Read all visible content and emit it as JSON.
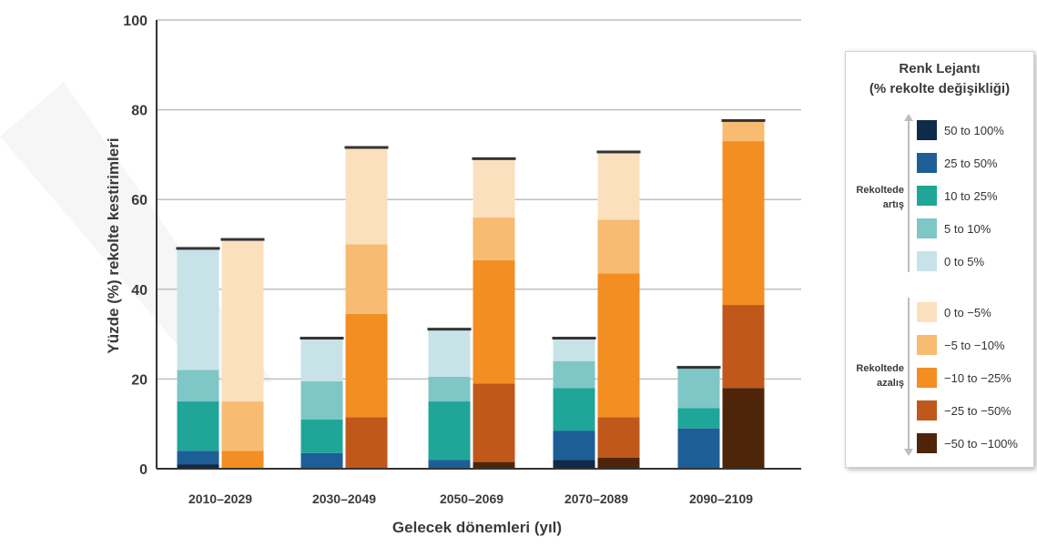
{
  "chart_data": {
    "type": "bar",
    "stacked": true,
    "xlabel": "Gelecek dönemleri (yıl)",
    "ylabel": "Yüzde (%) rekolte kestirimleri",
    "ylim": [
      0,
      100
    ],
    "yticks": [
      "0",
      "20",
      "40",
      "60",
      "80",
      "100"
    ],
    "grid": true,
    "legend_position": "right",
    "categories": [
      "2010–2029",
      "2030–2049",
      "2050–2069",
      "2070–2089",
      "2090–2109"
    ],
    "color_map": {
      "50 to 100%": "#0f2a4a",
      "25 to 50%": "#1e5e97",
      "10 to 25%": "#1fa699",
      "5 to 10%": "#7ec7c6",
      "0 to 5%": "#c7e3e8",
      "0 to −5%": "#fbe0bd",
      "−5 to −10%": "#f8bb72",
      "−10 to −25%": "#f28e22",
      "−25 to −50%": "#c0571b",
      "−50 to −100%": "#4e2509"
    },
    "bars": [
      {
        "category_index": 0,
        "type": "increase",
        "segments": [
          {
            "range": "50 to 100%",
            "value": 1
          },
          {
            "range": "25 to 50%",
            "value": 3
          },
          {
            "range": "10 to 25%",
            "value": 11
          },
          {
            "range": "5 to 10%",
            "value": 7
          },
          {
            "range": "0 to 5%",
            "value": 27
          }
        ]
      },
      {
        "category_index": 0,
        "type": "decrease",
        "segments": [
          {
            "range": "−10 to −25%",
            "value": 4
          },
          {
            "range": "−5 to −10%",
            "value": 11
          },
          {
            "range": "0 to −5%",
            "value": 36
          }
        ]
      },
      {
        "category_index": 1,
        "type": "increase",
        "segments": [
          {
            "range": "25 to 50%",
            "value": 3.5
          },
          {
            "range": "10 to 25%",
            "value": 7.5
          },
          {
            "range": "5 to 10%",
            "value": 8.5
          },
          {
            "range": "0 to 5%",
            "value": 9.5
          }
        ]
      },
      {
        "category_index": 1,
        "type": "decrease",
        "segments": [
          {
            "range": "−25 to −50%",
            "value": 11.5
          },
          {
            "range": "−10 to −25%",
            "value": 23
          },
          {
            "range": "−5 to −10%",
            "value": 15.5
          },
          {
            "range": "0 to −5%",
            "value": 21.5
          }
        ]
      },
      {
        "category_index": 2,
        "type": "increase",
        "segments": [
          {
            "range": "25 to 50%",
            "value": 2
          },
          {
            "range": "10 to 25%",
            "value": 13
          },
          {
            "range": "5 to 10%",
            "value": 5.5
          },
          {
            "range": "0 to 5%",
            "value": 10.5
          }
        ]
      },
      {
        "category_index": 2,
        "type": "decrease",
        "segments": [
          {
            "range": "−50 to −100%",
            "value": 1.5
          },
          {
            "range": "−25 to −50%",
            "value": 17.5
          },
          {
            "range": "−10 to −25%",
            "value": 27.5
          },
          {
            "range": "−5 to −10%",
            "value": 9.5
          },
          {
            "range": "0 to −5%",
            "value": 13
          }
        ]
      },
      {
        "category_index": 3,
        "type": "increase",
        "segments": [
          {
            "range": "50 to 100%",
            "value": 2
          },
          {
            "range": "25 to 50%",
            "value": 6.5
          },
          {
            "range": "10 to 25%",
            "value": 9.5
          },
          {
            "range": "5 to 10%",
            "value": 6
          },
          {
            "range": "0 to 5%",
            "value": 5
          }
        ]
      },
      {
        "category_index": 3,
        "type": "decrease",
        "segments": [
          {
            "range": "−50 to −100%",
            "value": 2.5
          },
          {
            "range": "−25 to −50%",
            "value": 9
          },
          {
            "range": "−10 to −25%",
            "value": 32
          },
          {
            "range": "−5 to −10%",
            "value": 12
          },
          {
            "range": "0 to −5%",
            "value": 15
          }
        ]
      },
      {
        "category_index": 4,
        "type": "increase",
        "segments": [
          {
            "range": "25 to 50%",
            "value": 9
          },
          {
            "range": "10 to 25%",
            "value": 4.5
          },
          {
            "range": "5 to 10%",
            "value": 9
          }
        ]
      },
      {
        "category_index": 4,
        "type": "decrease",
        "segments": [
          {
            "range": "−50 to −100%",
            "value": 18
          },
          {
            "range": "−25 to −50%",
            "value": 18.5
          },
          {
            "range": "−10 to −25%",
            "value": 36.5
          },
          {
            "range": "−5 to −10%",
            "value": 4.5
          }
        ]
      }
    ]
  },
  "legend": {
    "title_line1": "Renk Lejantı",
    "title_line2": "(% rekolte değişikliği)",
    "increase_label_line1": "Rekoltede",
    "increase_label_line2": "artış",
    "decrease_label_line1": "Rekoltede",
    "decrease_label_line2": "azalış",
    "increase_items": [
      {
        "label": "50 to 100%",
        "color": "#0f2a4a"
      },
      {
        "label": "25 to 50%",
        "color": "#1e5e97"
      },
      {
        "label": "10 to 25%",
        "color": "#1fa699"
      },
      {
        "label": "5 to 10%",
        "color": "#7ec7c6"
      },
      {
        "label": "0 to 5%",
        "color": "#c7e3e8"
      }
    ],
    "decrease_items": [
      {
        "label": "0 to −5%",
        "color": "#fbe0bd"
      },
      {
        "label": "−5 to −10%",
        "color": "#f8bb72"
      },
      {
        "label": "−10 to −25%",
        "color": "#f28e22"
      },
      {
        "label": "−25 to −50%",
        "color": "#c0571b"
      },
      {
        "label": "−50 to −100%",
        "color": "#4e2509"
      }
    ]
  }
}
